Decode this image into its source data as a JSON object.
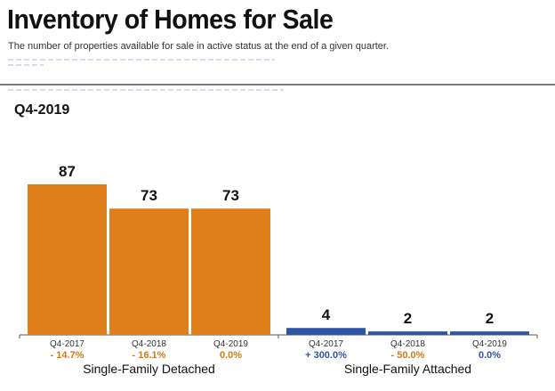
{
  "header": {
    "title": "Inventory of Homes for Sale",
    "subtitle": "The number of properties available for sale in active status at the end of a given quarter.",
    "period": "Q4-2019"
  },
  "colors": {
    "detached": "#df7f1b",
    "attached": "#2f55a5",
    "negative": "#d07a10",
    "positive": "#2f55a5",
    "zero_detached": "#d07a10",
    "zero_attached": "#2f55a5"
  },
  "chart_data": {
    "type": "bar",
    "title": "Inventory of Homes for Sale",
    "groups": [
      {
        "name": "Single-Family Detached",
        "categories": [
          "Q4-2017",
          "Q4-2018",
          "Q4-2019"
        ],
        "values": [
          87,
          73,
          73
        ],
        "changes": [
          "- 14.7%",
          "- 16.1%",
          "0.0%"
        ]
      },
      {
        "name": "Single-Family Attached",
        "categories": [
          "Q4-2017",
          "Q4-2018",
          "Q4-2019"
        ],
        "values": [
          4,
          2,
          2
        ],
        "changes": [
          "+ 300.0%",
          "- 50.0%",
          "0.0%"
        ]
      }
    ],
    "ylim": [
      0,
      87
    ],
    "grid": false
  }
}
